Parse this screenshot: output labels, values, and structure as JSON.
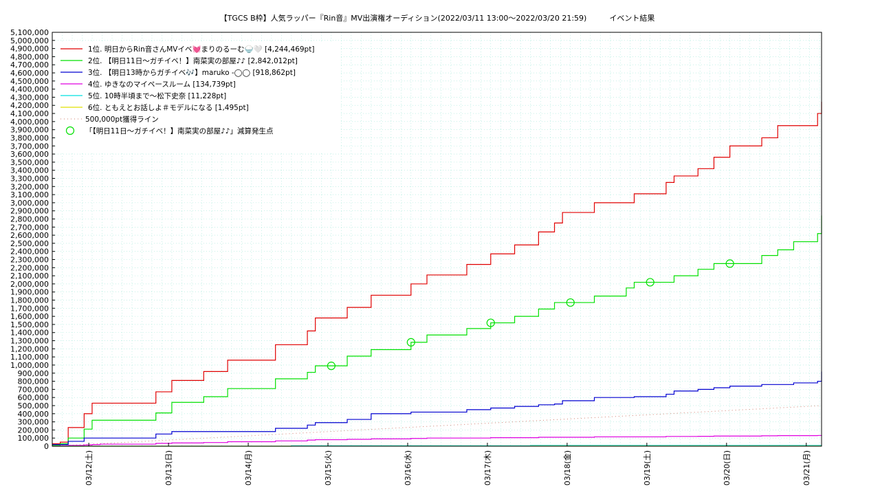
{
  "chart_data": {
    "type": "line",
    "title": "【TGCS B枠】人気ラッパー『Rin音』MV出演権オーディション(2022/03/11 13:00～2022/03/20 21:59)　　　イベント結果",
    "xlabel": "",
    "ylabel": "",
    "x_ticks": [
      "03/12(土)",
      "03/13(日)",
      "03/14(月)",
      "03/15(火)",
      "03/16(水)",
      "03/17(木)",
      "03/18(金)",
      "03/19(土)",
      "03/20(日)",
      "03/21(月)"
    ],
    "xlim": [
      "2022-03-11 13:00",
      "2022-03-21 00:00"
    ],
    "ylim": [
      0,
      5100000
    ],
    "y_tick_step": 100000,
    "y_ticks": [
      "0",
      "100,000",
      "200,000",
      "300,000",
      "400,000",
      "500,000",
      "600,000",
      "700,000",
      "800,000",
      "900,000",
      "1,000,000",
      "1,100,000",
      "1,200,000",
      "1,300,000",
      "1,400,000",
      "1,500,000",
      "1,600,000",
      "1,700,000",
      "1,800,000",
      "1,900,000",
      "2,000,000",
      "2,100,000",
      "2,200,000",
      "2,300,000",
      "2,400,000",
      "2,500,000",
      "2,600,000",
      "2,700,000",
      "2,800,000",
      "2,900,000",
      "3,000,000",
      "3,100,000",
      "3,200,000",
      "3,300,000",
      "3,400,000",
      "3,500,000",
      "3,600,000",
      "3,700,000",
      "3,800,000",
      "3,900,000",
      "4,000,000",
      "4,100,000",
      "4,200,000",
      "4,300,000",
      "4,400,000",
      "4,500,000",
      "4,600,000",
      "4,700,000",
      "4,800,000",
      "4,900,000",
      "5,000,000",
      "5,100,000"
    ],
    "grid": true,
    "legend_position": "top-left",
    "series": [
      {
        "name": "1位. 明日からRin音さんMVイベ💓まりのるーむ🍚🤍 [4,244,469pt]",
        "color": "#e00000",
        "x": [
          0.0,
          0.1,
          0.2,
          0.4,
          0.5,
          0.6,
          1.3,
          1.5,
          1.9,
          2.2,
          2.8,
          3.2,
          3.3,
          3.7,
          4.0,
          4.1,
          4.5,
          4.7,
          5.2,
          5.5,
          5.7,
          5.8,
          6.1,
          6.3,
          6.4,
          6.8,
          7.2,
          7.3,
          7.7,
          7.8,
          8.1,
          8.3,
          8.5,
          8.9,
          9.1,
          9.3,
          9.6,
          9.65
        ],
        "y": [
          30000,
          50000,
          230000,
          400000,
          530000,
          530000,
          670000,
          810000,
          920000,
          1060000,
          1250000,
          1420000,
          1580000,
          1710000,
          1860000,
          1860000,
          2000000,
          2110000,
          2240000,
          2370000,
          2370000,
          2480000,
          2640000,
          2750000,
          2880000,
          3000000,
          3000000,
          3110000,
          3250000,
          3330000,
          3420000,
          3560000,
          3700000,
          3800000,
          3950000,
          3950000,
          4100000,
          4244469
        ]
      },
      {
        "name": "2位. 【明日11日〜ガチイベ！】南菜実の部屋♪♪ [2,842,012pt]",
        "color": "#00e000",
        "x": [
          0.0,
          0.1,
          0.2,
          0.4,
          0.5,
          0.6,
          1.3,
          1.5,
          1.9,
          2.2,
          2.8,
          3.2,
          3.3,
          3.7,
          4.0,
          4.1,
          4.5,
          4.7,
          5.2,
          5.5,
          5.7,
          5.8,
          6.1,
          6.3,
          6.4,
          6.8,
          7.2,
          7.3,
          7.7,
          7.8,
          8.1,
          8.3,
          8.5,
          8.9,
          9.1,
          9.3,
          9.6,
          9.65
        ],
        "y": [
          10000,
          30000,
          100000,
          210000,
          320000,
          320000,
          410000,
          540000,
          610000,
          710000,
          830000,
          910000,
          990000,
          1110000,
          1190000,
          1190000,
          1280000,
          1370000,
          1450000,
          1520000,
          1520000,
          1600000,
          1690000,
          1770000,
          1770000,
          1850000,
          1950000,
          2020000,
          2020000,
          2100000,
          2180000,
          2250000,
          2250000,
          2350000,
          2420000,
          2520000,
          2620000,
          2842012
        ]
      },
      {
        "name": "3位. 【明日13時からガチイベ🎶】maruko -◯◯ [918,862pt]",
        "color": "#0000d0",
        "x": [
          0.0,
          0.1,
          0.2,
          0.4,
          0.5,
          0.6,
          1.3,
          1.5,
          1.9,
          2.2,
          2.8,
          3.2,
          3.3,
          3.7,
          4.0,
          4.1,
          4.5,
          4.7,
          5.2,
          5.5,
          5.7,
          5.8,
          6.1,
          6.3,
          6.4,
          6.8,
          7.2,
          7.3,
          7.7,
          7.8,
          8.1,
          8.3,
          8.5,
          8.9,
          9.1,
          9.3,
          9.6,
          9.65
        ],
        "y": [
          20000,
          20000,
          60000,
          100000,
          100000,
          100000,
          150000,
          180000,
          180000,
          180000,
          220000,
          260000,
          290000,
          330000,
          400000,
          400000,
          420000,
          420000,
          450000,
          470000,
          470000,
          490000,
          510000,
          520000,
          560000,
          600000,
          600000,
          610000,
          640000,
          680000,
          700000,
          720000,
          740000,
          760000,
          760000,
          780000,
          800000,
          918862
        ]
      },
      {
        "name": "4位. ゆきなのマイペースルーム [134,739pt]",
        "color": "#e000e0",
        "x": [
          0.0,
          0.1,
          0.2,
          0.4,
          0.5,
          0.6,
          1.3,
          1.5,
          1.9,
          2.2,
          2.8,
          3.2,
          3.3,
          3.7,
          4.0,
          4.1,
          4.5,
          4.7,
          5.2,
          5.5,
          5.7,
          5.8,
          6.1,
          6.3,
          6.4,
          6.8,
          7.2,
          7.3,
          7.7,
          7.8,
          8.1,
          8.3,
          8.5,
          8.9,
          9.1,
          9.3,
          9.6,
          9.65
        ],
        "y": [
          0,
          5000,
          10000,
          15000,
          20000,
          25000,
          35000,
          40000,
          45000,
          55000,
          65000,
          75000,
          80000,
          85000,
          90000,
          90000,
          95000,
          100000,
          100000,
          105000,
          105000,
          105000,
          110000,
          110000,
          110000,
          115000,
          115000,
          115000,
          120000,
          120000,
          122000,
          125000,
          125000,
          128000,
          130000,
          130000,
          132000,
          134739
        ]
      },
      {
        "name": "5位. 10時半頃まで〜松下史奈 [11,228pt]",
        "color": "#00e0e0",
        "x": [
          0.0,
          3.0,
          6.0,
          9.65
        ],
        "y": [
          0,
          5000,
          9000,
          11228
        ]
      },
      {
        "name": "6位. ともえとお話しよ＃モデルになる [1,495pt]",
        "color": "#e0e000",
        "x": [
          0.0,
          3.0,
          6.0,
          9.65
        ],
        "y": [
          0,
          600,
          1100,
          1495
        ]
      }
    ],
    "reference_line": {
      "name": "500,000pt獲得ライン",
      "color": "#d08070",
      "x": [
        0.0,
        9.65
      ],
      "y": [
        0,
        500000
      ]
    },
    "markers": {
      "name": "「【明日11日〜ガチイベ！】南菜実の部屋♪♪」減算発生点",
      "color": "#00e000",
      "x": [
        3.5,
        4.5,
        5.5,
        6.5,
        7.5,
        8.5
      ],
      "y": [
        990000,
        1280000,
        1520000,
        1770000,
        2020000,
        2250000
      ]
    }
  }
}
